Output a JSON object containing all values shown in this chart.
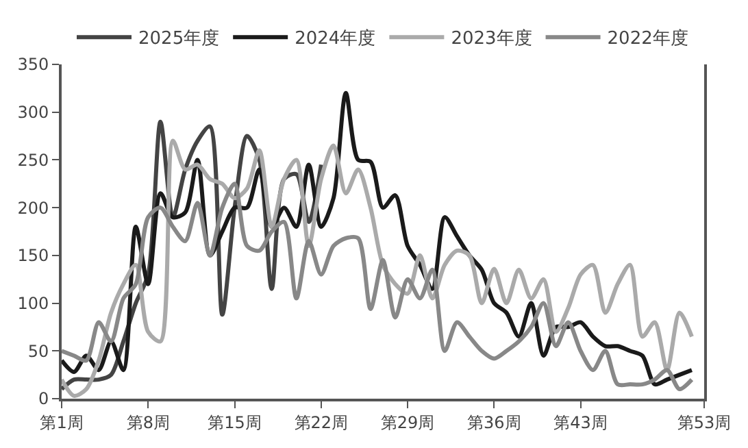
{
  "chart_data": {
    "type": "line",
    "legend": "top",
    "marker": "none",
    "line_style": "solid",
    "ylim": [
      0,
      350
    ],
    "categories": [
      "第1周",
      null,
      null,
      null,
      null,
      null,
      null,
      "第8周",
      null,
      null,
      null,
      null,
      null,
      null,
      "第15周",
      null,
      null,
      null,
      null,
      null,
      null,
      "第22周",
      null,
      null,
      null,
      null,
      null,
      null,
      "第29周",
      null,
      null,
      null,
      null,
      null,
      null,
      "第36周",
      null,
      null,
      null,
      null,
      null,
      null,
      "第43周",
      null,
      null,
      null,
      null,
      null,
      null,
      null,
      null,
      null,
      "第53周"
    ],
    "yticks": [
      0,
      50,
      100,
      150,
      200,
      250,
      300,
      350
    ],
    "series": [
      {
        "name": "2025年度",
        "color": "#444444",
        "values": [
          10,
          20,
          20,
          20,
          25,
          60,
          100,
          130,
          290,
          190,
          240,
          270,
          285,
          88,
          200,
          275,
          250,
          115,
          230,
          235,
          185,
          245,
          null,
          null,
          null,
          null,
          null,
          null,
          null,
          null,
          null,
          null,
          null,
          null,
          null,
          null,
          null,
          null,
          null,
          null,
          null,
          null,
          null,
          null,
          null,
          null,
          null,
          null,
          null,
          null,
          null,
          null,
          null
        ]
      },
      {
        "name": "2024年度",
        "color": "#1a1a1a",
        "values": [
          40,
          28,
          45,
          30,
          60,
          30,
          180,
          120,
          215,
          190,
          195,
          250,
          150,
          175,
          200,
          200,
          240,
          180,
          200,
          180,
          245,
          180,
          210,
          320,
          250,
          248,
          200,
          213,
          160,
          140,
          115,
          190,
          170,
          150,
          135,
          100,
          90,
          65,
          100,
          45,
          75,
          75,
          80,
          65,
          55,
          55,
          50,
          45,
          15,
          20,
          25,
          30,
          null
        ]
      },
      {
        "name": "2023年度",
        "color": "#aaaaaa",
        "values": [
          20,
          3,
          10,
          40,
          90,
          120,
          140,
          70,
          60,
          270,
          240,
          245,
          230,
          225,
          210,
          220,
          260,
          180,
          230,
          250,
          160,
          230,
          265,
          215,
          240,
          200,
          140,
          120,
          110,
          150,
          105,
          140,
          155,
          150,
          100,
          136,
          100,
          135,
          105,
          125,
          70,
          95,
          130,
          140,
          90,
          120,
          140,
          65,
          80,
          30,
          90,
          65,
          null
        ]
      },
      {
        "name": "2022年度",
        "color": "#888888",
        "values": [
          50,
          45,
          40,
          80,
          60,
          105,
          120,
          190,
          200,
          180,
          165,
          205,
          150,
          200,
          225,
          160,
          155,
          175,
          185,
          105,
          165,
          130,
          160,
          168,
          168,
          94,
          145,
          85,
          125,
          105,
          135,
          50,
          80,
          65,
          50,
          42,
          50,
          60,
          75,
          100,
          55,
          80,
          50,
          30,
          50,
          15,
          15,
          15,
          20,
          30,
          10,
          20,
          null
        ]
      }
    ]
  }
}
